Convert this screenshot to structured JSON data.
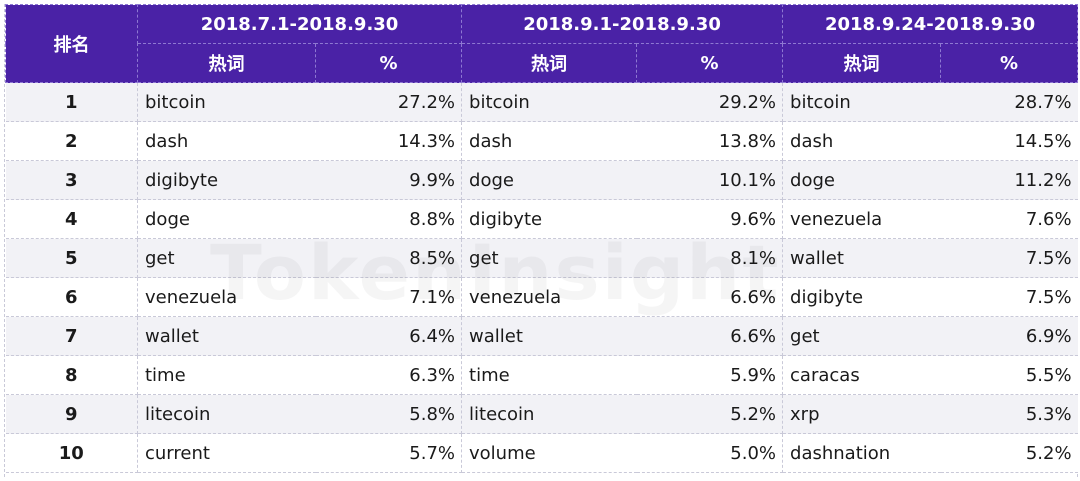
{
  "header": {
    "rank_label": "排名",
    "periods": [
      "2018.7.1-2018.9.30",
      "2018.9.1-2018.9.30",
      "2018.9.24-2018.9.30"
    ],
    "keyword_label": "热词",
    "percent_label": "%"
  },
  "rows": [
    {
      "rank": "1",
      "p1_word": "bitcoin",
      "p1_pct": "27.2%",
      "p2_word": "bitcoin",
      "p2_pct": "29.2%",
      "p3_word": "bitcoin",
      "p3_pct": "28.7%"
    },
    {
      "rank": "2",
      "p1_word": "dash",
      "p1_pct": "14.3%",
      "p2_word": "dash",
      "p2_pct": "13.8%",
      "p3_word": "dash",
      "p3_pct": "14.5%"
    },
    {
      "rank": "3",
      "p1_word": "digibyte",
      "p1_pct": "9.9%",
      "p2_word": "doge",
      "p2_pct": "10.1%",
      "p3_word": "doge",
      "p3_pct": "11.2%"
    },
    {
      "rank": "4",
      "p1_word": "doge",
      "p1_pct": "8.8%",
      "p2_word": "digibyte",
      "p2_pct": "9.6%",
      "p3_word": "venezuela",
      "p3_pct": "7.6%"
    },
    {
      "rank": "5",
      "p1_word": "get",
      "p1_pct": "8.5%",
      "p2_word": "get",
      "p2_pct": "8.1%",
      "p3_word": "wallet",
      "p3_pct": "7.5%"
    },
    {
      "rank": "6",
      "p1_word": "venezuela",
      "p1_pct": "7.1%",
      "p2_word": "venezuela",
      "p2_pct": "6.6%",
      "p3_word": "digibyte",
      "p3_pct": "7.5%"
    },
    {
      "rank": "7",
      "p1_word": "wallet",
      "p1_pct": "6.4%",
      "p2_word": "wallet",
      "p2_pct": "6.6%",
      "p3_word": "get",
      "p3_pct": "6.9%"
    },
    {
      "rank": "8",
      "p1_word": "time",
      "p1_pct": "6.3%",
      "p2_word": "time",
      "p2_pct": "5.9%",
      "p3_word": "caracas",
      "p3_pct": "5.5%"
    },
    {
      "rank": "9",
      "p1_word": "litecoin",
      "p1_pct": "5.8%",
      "p2_word": "litecoin",
      "p2_pct": "5.2%",
      "p3_word": "xrp",
      "p3_pct": "5.3%"
    },
    {
      "rank": "10",
      "p1_word": "current",
      "p1_pct": "5.7%",
      "p2_word": "volume",
      "p2_pct": "5.0%",
      "p3_word": "dashnation",
      "p3_pct": "5.2%"
    }
  ],
  "watermark": "TokenInsight",
  "colors": {
    "header_bg": "#4a22a6",
    "row_alt": "#f2f2f6"
  }
}
